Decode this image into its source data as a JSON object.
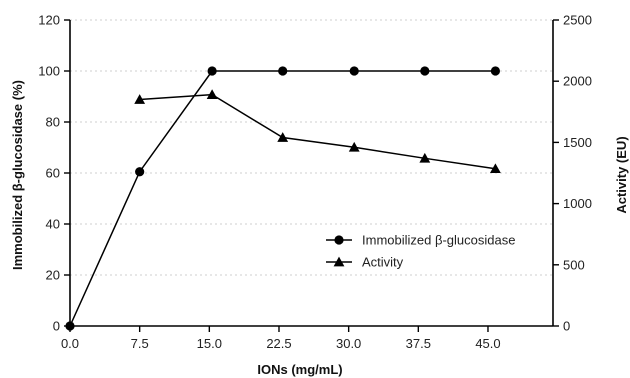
{
  "chart_data": {
    "type": "line",
    "xlabel": "IONs (mg/mL)",
    "ylabel_left": "Immobilized β-glucosidase  (%)",
    "ylabel_right": "Activity (EU)",
    "xlim": [
      0,
      52
    ],
    "ylim_left": [
      0,
      120
    ],
    "ylim_right": [
      0,
      2500
    ],
    "x_ticks": [
      0.0,
      7.5,
      15.0,
      22.5,
      30.0,
      37.5,
      45.0
    ],
    "x_tick_labels": [
      "0.0",
      "7.5",
      "15.0",
      "22.5",
      "30.0",
      "37.5",
      "45.0"
    ],
    "y_left_ticks": [
      0,
      20,
      40,
      60,
      80,
      100,
      120
    ],
    "y_right_ticks": [
      0,
      500,
      1000,
      1500,
      2000,
      2500
    ],
    "grid": "horizontal dashed",
    "legend_position": "center-right",
    "series": [
      {
        "name": "Immobilized β-glucosidase",
        "axis": "left",
        "marker": "circle",
        "x": [
          0.0,
          7.5,
          15.3,
          22.9,
          30.6,
          38.2,
          45.8
        ],
        "y": [
          0,
          60.5,
          100,
          100,
          100,
          100,
          100
        ]
      },
      {
        "name": "Activity",
        "axis": "right",
        "marker": "triangle",
        "x": [
          7.5,
          15.3,
          22.9,
          30.6,
          38.2,
          45.8
        ],
        "y": [
          1850,
          1890,
          1540,
          1460,
          1370,
          1285
        ]
      }
    ]
  }
}
